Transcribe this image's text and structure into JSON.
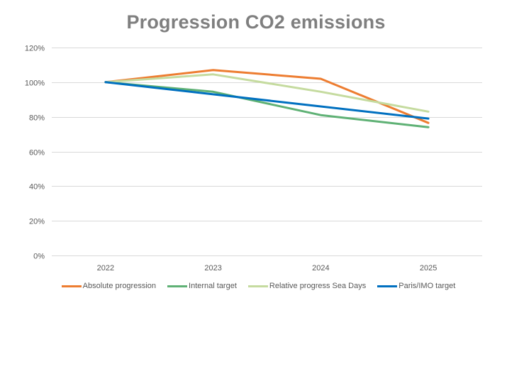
{
  "chart_data": {
    "type": "line",
    "title": "Progression CO2 emissions",
    "xlabel": "",
    "ylabel": "",
    "categories": [
      "2022",
      "2023",
      "2024",
      "2025"
    ],
    "y_ticks": [
      "0%",
      "20%",
      "40%",
      "60%",
      "80%",
      "100%",
      "120%"
    ],
    "ylim": [
      0,
      120
    ],
    "grid": true,
    "legend_position": "bottom",
    "series": [
      {
        "name": "Absolute progression",
        "color": "#ED7D31",
        "values": [
          100,
          107,
          102,
          76.5
        ]
      },
      {
        "name": "Internal target",
        "color": "#5FB175",
        "values": [
          100,
          94.5,
          81,
          74
        ]
      },
      {
        "name": "Relative progress Sea Days",
        "color": "#C5DB9F",
        "values": [
          100,
          104.5,
          94.5,
          83
        ]
      },
      {
        "name": "Paris/IMO target",
        "color": "#0070C0",
        "values": [
          100,
          93,
          86,
          79
        ]
      }
    ]
  }
}
